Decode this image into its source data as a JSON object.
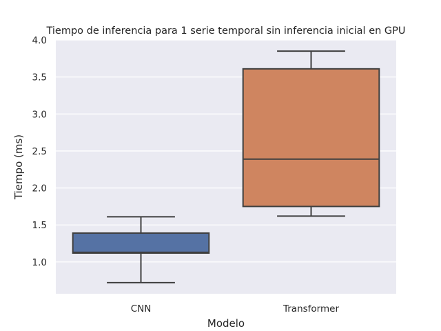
{
  "chart_data": {
    "type": "box",
    "title": "Tiempo de inferencia para 1 serie temporal sin inferencia inicial en GPU",
    "xlabel": "Modelo",
    "ylabel": "Tiempo (ms)",
    "ylim": [
      0.57,
      4.0
    ],
    "yticks": [
      "1.0",
      "1.5",
      "2.0",
      "2.5",
      "3.0",
      "3.5",
      "4.0"
    ],
    "grid": true,
    "legend": "none",
    "categories": [
      "CNN",
      "Transformer"
    ],
    "boxes": [
      {
        "category": "CNN",
        "whisker_low": 0.72,
        "q1": 1.12,
        "median": 1.13,
        "q3": 1.39,
        "whisker_high": 1.61,
        "color": "#5572a4"
      },
      {
        "category": "Transformer",
        "whisker_low": 1.62,
        "q1": 1.75,
        "median": 2.39,
        "q3": 3.61,
        "whisker_high": 3.85,
        "color": "#cf8560"
      }
    ],
    "colors": {
      "background": "#eaeaf2",
      "grid": "#ffffff",
      "line": "#3f3f3f"
    }
  }
}
